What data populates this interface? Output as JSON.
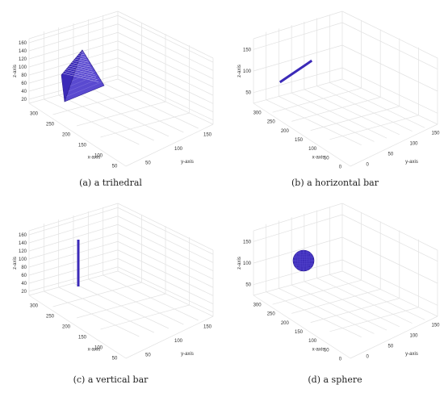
{
  "colors": {
    "object": "#3b2ab8",
    "objectDark": "#2b1d8f",
    "grid": "#e2e2e2",
    "box": "#e4e4e4"
  },
  "panels": [
    {
      "caption": "(a) a trihedral",
      "object": "trihedral",
      "z_ticks": [
        "160",
        "140",
        "120",
        "100",
        "80",
        "60",
        "40",
        "20"
      ],
      "x_ticks": [
        "300",
        "250",
        "200",
        "150",
        "100",
        "50"
      ],
      "y_ticks": [
        "50",
        "100",
        "150"
      ],
      "labels": {
        "x": "x-axis",
        "y": "y-axis",
        "z": "z-axis"
      }
    },
    {
      "caption": "(b) a horizontal bar",
      "object": "horizontal-bar",
      "z_ticks": [
        "150",
        "100",
        "50"
      ],
      "x_ticks": [
        "300",
        "250",
        "200",
        "150",
        "100",
        "50",
        "0"
      ],
      "y_ticks": [
        "0",
        "50",
        "100",
        "150"
      ],
      "labels": {
        "x": "x-axis",
        "y": "y-axis",
        "z": "z-axis"
      }
    },
    {
      "caption": "(c) a vertical bar",
      "object": "vertical-bar",
      "z_ticks": [
        "160",
        "140",
        "120",
        "100",
        "80",
        "60",
        "40",
        "20"
      ],
      "x_ticks": [
        "300",
        "250",
        "200",
        "150",
        "100",
        "50"
      ],
      "y_ticks": [
        "50",
        "100",
        "150"
      ],
      "labels": {
        "x": "x-axis",
        "y": "y-axis",
        "z": "z-axis"
      }
    },
    {
      "caption": "(d) a sphere",
      "object": "sphere",
      "z_ticks": [
        "150",
        "100",
        "50"
      ],
      "x_ticks": [
        "300",
        "250",
        "200",
        "150",
        "100",
        "50",
        "0"
      ],
      "y_ticks": [
        "0",
        "50",
        "100",
        "150"
      ],
      "labels": {
        "x": "x-axis",
        "y": "y-axis",
        "z": "z-axis"
      }
    }
  ]
}
